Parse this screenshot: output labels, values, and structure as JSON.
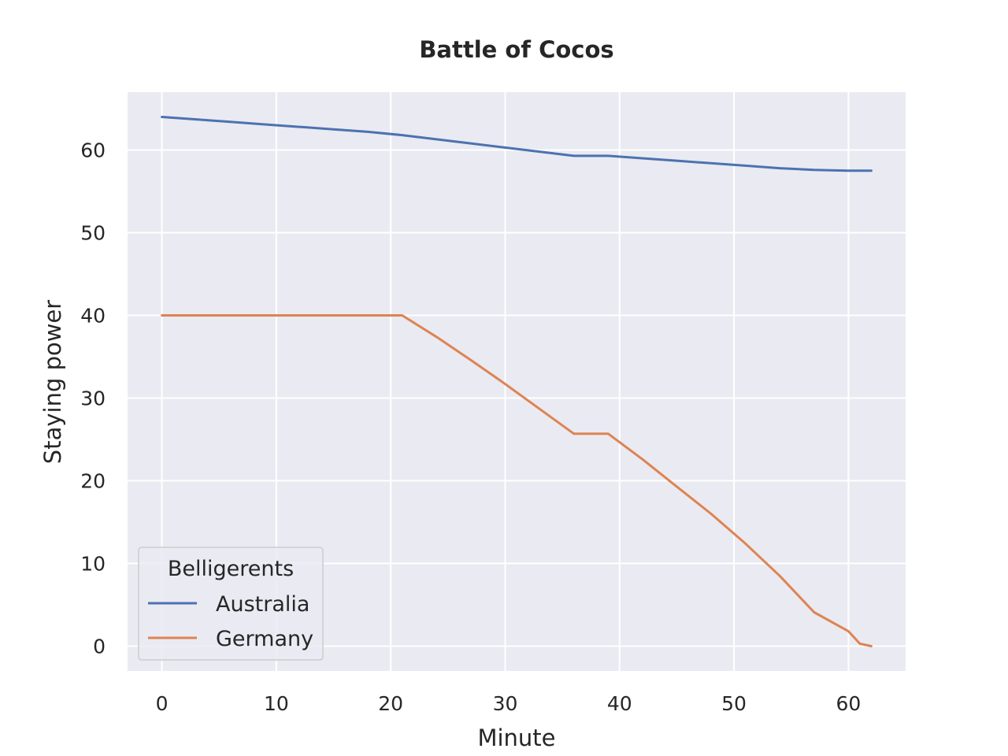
{
  "chart_data": {
    "type": "line",
    "title": "Battle of Cocos",
    "xlabel": "Minute",
    "ylabel": "Staying power",
    "xlim": [
      -3,
      65
    ],
    "ylim": [
      -3,
      67
    ],
    "xticks": [
      0,
      10,
      20,
      30,
      40,
      50,
      60
    ],
    "yticks": [
      0,
      10,
      20,
      30,
      40,
      50,
      60
    ],
    "grid": true,
    "legend": {
      "title": "Belligerents",
      "position": "lower-left"
    },
    "series": [
      {
        "name": "Australia",
        "color": "#4c72b0",
        "x": [
          0,
          3,
          6,
          9,
          12,
          15,
          18,
          21,
          24,
          27,
          30,
          33,
          36,
          39,
          42,
          45,
          48,
          51,
          54,
          57,
          60,
          62
        ],
        "y": [
          64.0,
          63.7,
          63.4,
          63.1,
          62.8,
          62.5,
          62.2,
          61.8,
          61.3,
          60.8,
          60.3,
          59.8,
          59.3,
          59.3,
          59.0,
          58.7,
          58.4,
          58.1,
          57.8,
          57.6,
          57.5,
          57.5
        ]
      },
      {
        "name": "Germany",
        "color": "#dd8452",
        "x": [
          0,
          3,
          6,
          9,
          12,
          15,
          18,
          21,
          24,
          27,
          30,
          33,
          36,
          39,
          42,
          45,
          48,
          51,
          54,
          57,
          60,
          61,
          62
        ],
        "y": [
          40,
          40,
          40,
          40,
          40,
          40,
          40,
          40,
          37.4,
          34.6,
          31.7,
          28.7,
          25.7,
          25.7,
          22.6,
          19.3,
          16.0,
          12.4,
          8.5,
          4.1,
          1.8,
          0.3,
          0.0
        ]
      }
    ]
  }
}
